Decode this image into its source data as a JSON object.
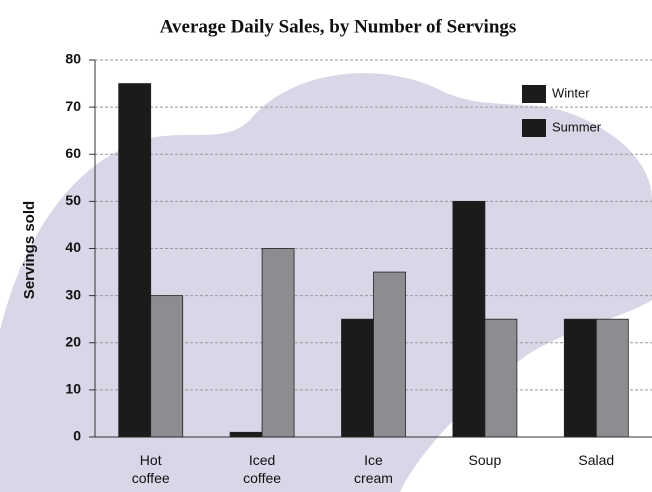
{
  "chart_data": {
    "type": "bar",
    "title": "Average Daily Sales, by Number of Servings",
    "y_label": "Servings sold",
    "categories": [
      "Hot coffee",
      "Iced coffee",
      "Ice cream",
      "Soup",
      "Salad"
    ],
    "series": [
      {
        "name": "Winter",
        "color": "#1b1b1b",
        "values": [
          75,
          1,
          25,
          50,
          25
        ]
      },
      {
        "name": "Summer",
        "color": "#8b8d90",
        "values": [
          30,
          40,
          35,
          25,
          25
        ]
      }
    ],
    "ylim": [
      0,
      80
    ],
    "yticks": [
      0,
      10,
      20,
      30,
      40,
      50,
      60,
      70,
      80
    ],
    "grid": true,
    "legend": "top-right"
  }
}
